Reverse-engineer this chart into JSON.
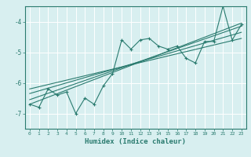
{
  "x": [
    0,
    1,
    2,
    3,
    4,
    5,
    6,
    7,
    8,
    9,
    10,
    11,
    12,
    13,
    14,
    15,
    16,
    17,
    18,
    19,
    20,
    21,
    22,
    23
  ],
  "y_main": [
    -6.7,
    -6.8,
    -6.2,
    -6.4,
    -6.3,
    -7.0,
    -6.5,
    -6.7,
    -6.1,
    -5.7,
    -4.6,
    -4.9,
    -4.6,
    -4.55,
    -4.8,
    -4.9,
    -4.8,
    -5.2,
    -5.35,
    -4.65,
    -4.65,
    -3.5,
    -4.6,
    -4.1
  ],
  "reg_lines": [
    {
      "x0": 0,
      "y0": -6.55,
      "x1": 23,
      "y1": -4.15
    },
    {
      "x0": 0,
      "y0": -6.2,
      "x1": 23,
      "y1": -4.55
    },
    {
      "x0": 0,
      "y0": -6.35,
      "x1": 23,
      "y1": -4.35
    },
    {
      "x0": 0,
      "y0": -6.7,
      "x1": 23,
      "y1": -4.05
    }
  ],
  "xlabel": "Humidex (Indice chaleur)",
  "ylim": [
    -7.5,
    -3.5
  ],
  "xlim": [
    -0.5,
    23.5
  ],
  "yticks": [
    -7,
    -6,
    -5,
    -4
  ],
  "xticks": [
    0,
    1,
    2,
    3,
    4,
    5,
    6,
    7,
    8,
    9,
    10,
    11,
    12,
    13,
    14,
    15,
    16,
    17,
    18,
    19,
    20,
    21,
    22,
    23
  ],
  "line_color": "#2a7b6f",
  "bg_color": "#d8eff0",
  "grid_color": "#ffffff",
  "fig_bg": "#d8eff0"
}
